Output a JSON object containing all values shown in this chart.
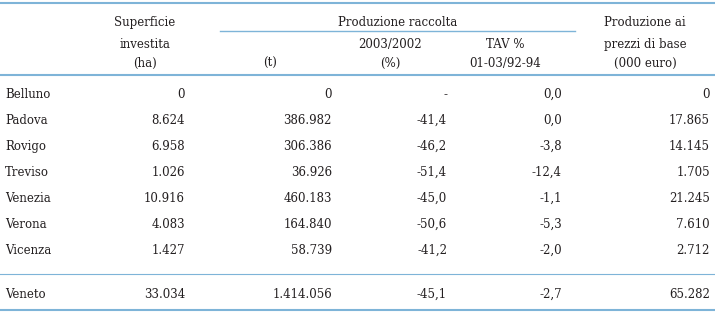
{
  "rows": [
    [
      "Belluno",
      "0",
      "0",
      "-",
      "0,0",
      "0"
    ],
    [
      "Padova",
      "8.624",
      "386.982",
      "-41,4",
      "0,0",
      "17.865"
    ],
    [
      "Rovigo",
      "6.958",
      "306.386",
      "-46,2",
      "-3,8",
      "14.145"
    ],
    [
      "Treviso",
      "1.026",
      "36.926",
      "-51,4",
      "-12,4",
      "1.705"
    ],
    [
      "Venezia",
      "10.916",
      "460.183",
      "-45,0",
      "-1,1",
      "21.245"
    ],
    [
      "Verona",
      "4.083",
      "164.840",
      "-50,6",
      "-5,3",
      "7.610"
    ],
    [
      "Vicenza",
      "1.427",
      "58.739",
      "-41,2",
      "-2,0",
      "2.712"
    ]
  ],
  "total_row": [
    "Veneto",
    "33.034",
    "1.414.056",
    "-45,1",
    "-2,7",
    "65.282"
  ],
  "h1_labels": [
    "Superficie",
    "Produzione raccolta",
    "Produzione ai"
  ],
  "h2_labels": [
    "investita",
    "2003/2002",
    "TAV %",
    "prezzi di base"
  ],
  "h3_labels": [
    "(ha)",
    "(t)",
    "(%)",
    "01-03/92-94",
    "(000 euro)"
  ],
  "line_color": "#7EB4D8",
  "text_color": "#231F20",
  "bg_color": "#ffffff",
  "font_size": 8.5,
  "font_family": "DejaVu Serif"
}
